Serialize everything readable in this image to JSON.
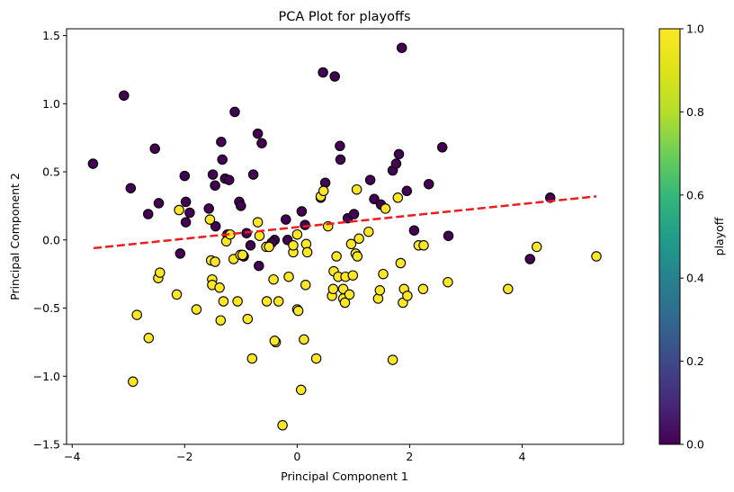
{
  "chart_data": {
    "type": "scatter",
    "title": "PCA Plot for playoffs",
    "xlabel": "Principal Component 1",
    "ylabel": "Principal Component 2",
    "xlim": [
      -4.1,
      5.8
    ],
    "ylim": [
      -1.5,
      1.55
    ],
    "xticks": [
      -4,
      -2,
      0,
      2,
      4
    ],
    "xtick_labels": [
      "−4",
      "−2",
      "0",
      "2",
      "4"
    ],
    "yticks": [
      -1.5,
      -1.0,
      -0.5,
      0.0,
      0.5,
      1.0,
      1.5
    ],
    "ytick_labels": [
      "−1.5",
      "−1.0",
      "−0.5",
      "0.0",
      "0.5",
      "1.0",
      "1.5"
    ],
    "grid": false,
    "colorbar": {
      "label": "playoff",
      "range": [
        0.0,
        1.0
      ],
      "ticks": [
        0.0,
        0.2,
        0.4,
        0.6,
        0.8,
        1.0
      ],
      "tick_labels": [
        "0.0",
        "0.2",
        "0.4",
        "0.6",
        "0.8",
        "1.0"
      ],
      "colormap": "viridis"
    },
    "colors": {
      "playoff_0": "#440154",
      "playoff_1": "#fde725",
      "edge": "#000000",
      "trend": "#ee1c1c"
    },
    "trend_line": {
      "x": [
        -3.62,
        5.32
      ],
      "y": [
        -0.06,
        0.32
      ],
      "style": "dashed"
    },
    "series": [
      {
        "value": 0,
        "points": [
          [
            -3.63,
            0.56
          ],
          [
            -3.08,
            1.06
          ],
          [
            -2.96,
            0.38
          ],
          [
            -2.65,
            0.19
          ],
          [
            -2.53,
            0.67
          ],
          [
            -2.46,
            0.27
          ],
          [
            -2.08,
            -0.1
          ],
          [
            -2.0,
            0.47
          ],
          [
            -1.98,
            0.28
          ],
          [
            -1.98,
            0.13
          ],
          [
            -1.91,
            0.2
          ],
          [
            -1.57,
            0.23
          ],
          [
            -1.5,
            0.48
          ],
          [
            -1.46,
            0.4
          ],
          [
            -1.45,
            0.1
          ],
          [
            -1.35,
            0.72
          ],
          [
            -1.33,
            0.59
          ],
          [
            -1.28,
            0.45
          ],
          [
            -1.24,
            0.04
          ],
          [
            -1.21,
            0.44
          ],
          [
            -1.11,
            0.94
          ],
          [
            -1.03,
            0.28
          ],
          [
            -1.0,
            0.25
          ],
          [
            -0.95,
            -0.12
          ],
          [
            -0.9,
            0.05
          ],
          [
            -0.83,
            -0.04
          ],
          [
            -0.78,
            0.48
          ],
          [
            -0.7,
            0.78
          ],
          [
            -0.63,
            0.71
          ],
          [
            -0.68,
            -0.19
          ],
          [
            -0.4,
            0.0
          ],
          [
            -0.45,
            -0.02
          ],
          [
            -0.17,
            0.0
          ],
          [
            -0.2,
            0.15
          ],
          [
            0.08,
            0.21
          ],
          [
            0.14,
            0.11
          ],
          [
            0.42,
            0.31
          ],
          [
            0.5,
            0.42
          ],
          [
            0.46,
            1.23
          ],
          [
            0.67,
            1.2
          ],
          [
            0.76,
            0.69
          ],
          [
            0.77,
            0.59
          ],
          [
            0.9,
            0.16
          ],
          [
            1.01,
            0.19
          ],
          [
            1.3,
            0.44
          ],
          [
            1.37,
            0.3
          ],
          [
            1.49,
            0.26
          ],
          [
            1.7,
            0.51
          ],
          [
            1.76,
            0.56
          ],
          [
            1.81,
            0.63
          ],
          [
            1.86,
            1.41
          ],
          [
            1.95,
            0.36
          ],
          [
            2.08,
            0.07
          ],
          [
            2.34,
            0.41
          ],
          [
            2.58,
            0.68
          ],
          [
            2.69,
            0.03
          ],
          [
            4.14,
            -0.14
          ],
          [
            4.5,
            0.31
          ]
        ]
      },
      {
        "value": 1,
        "points": [
          [
            -2.92,
            -1.04
          ],
          [
            -2.85,
            -0.55
          ],
          [
            -2.64,
            -0.72
          ],
          [
            -2.47,
            -0.28
          ],
          [
            -2.44,
            -0.24
          ],
          [
            -2.14,
            -0.4
          ],
          [
            -2.1,
            0.22
          ],
          [
            -1.79,
            -0.51
          ],
          [
            -1.55,
            0.15
          ],
          [
            -1.53,
            -0.15
          ],
          [
            -1.51,
            -0.29
          ],
          [
            -1.51,
            -0.33
          ],
          [
            -1.46,
            -0.16
          ],
          [
            -1.38,
            -0.35
          ],
          [
            -1.36,
            -0.59
          ],
          [
            -1.31,
            -0.45
          ],
          [
            -1.26,
            -0.01
          ],
          [
            -1.19,
            0.04
          ],
          [
            -1.13,
            -0.14
          ],
          [
            -1.06,
            -0.45
          ],
          [
            -1.01,
            -0.11
          ],
          [
            -0.97,
            -0.11
          ],
          [
            -0.88,
            -0.58
          ],
          [
            -0.8,
            -0.87
          ],
          [
            -0.7,
            0.13
          ],
          [
            -0.67,
            0.03
          ],
          [
            -0.55,
            -0.05
          ],
          [
            -0.54,
            -0.45
          ],
          [
            -0.5,
            -0.05
          ],
          [
            -0.42,
            -0.29
          ],
          [
            -0.38,
            -0.75
          ],
          [
            -0.4,
            -0.74
          ],
          [
            -0.33,
            -0.45
          ],
          [
            -0.26,
            -1.36
          ],
          [
            -0.15,
            -0.27
          ],
          [
            -0.07,
            -0.09
          ],
          [
            -0.07,
            -0.04
          ],
          [
            0.0,
            0.04
          ],
          [
            0.0,
            -0.51
          ],
          [
            0.02,
            -0.52
          ],
          [
            0.07,
            -1.1
          ],
          [
            0.12,
            -0.73
          ],
          [
            0.15,
            -0.33
          ],
          [
            0.16,
            -0.03
          ],
          [
            0.18,
            -0.09
          ],
          [
            0.34,
            -0.87
          ],
          [
            0.42,
            0.32
          ],
          [
            0.47,
            0.36
          ],
          [
            0.55,
            0.1
          ],
          [
            0.62,
            -0.41
          ],
          [
            0.64,
            -0.36
          ],
          [
            0.65,
            -0.23
          ],
          [
            0.7,
            -0.12
          ],
          [
            0.73,
            -0.27
          ],
          [
            0.82,
            -0.36
          ],
          [
            0.82,
            -0.43
          ],
          [
            0.85,
            -0.46
          ],
          [
            0.86,
            -0.27
          ],
          [
            0.93,
            -0.4
          ],
          [
            0.96,
            -0.03
          ],
          [
            0.99,
            -0.26
          ],
          [
            1.04,
            -0.1
          ],
          [
            1.07,
            -0.12
          ],
          [
            1.06,
            0.37
          ],
          [
            1.1,
            0.01
          ],
          [
            1.27,
            0.06
          ],
          [
            1.44,
            -0.43
          ],
          [
            1.47,
            -0.37
          ],
          [
            1.53,
            -0.25
          ],
          [
            1.57,
            0.23
          ],
          [
            1.7,
            -0.88
          ],
          [
            1.79,
            0.31
          ],
          [
            1.84,
            -0.17
          ],
          [
            1.88,
            -0.46
          ],
          [
            1.9,
            -0.36
          ],
          [
            1.96,
            -0.41
          ],
          [
            2.16,
            -0.04
          ],
          [
            2.25,
            -0.04
          ],
          [
            2.24,
            -0.36
          ],
          [
            2.68,
            -0.31
          ],
          [
            3.75,
            -0.36
          ],
          [
            4.26,
            -0.05
          ],
          [
            5.32,
            -0.12
          ]
        ]
      }
    ]
  }
}
